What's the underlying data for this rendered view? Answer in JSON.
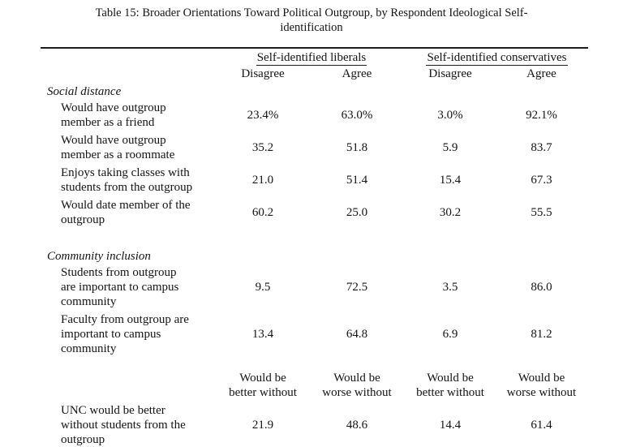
{
  "title": {
    "line1": "Table 15: Broader Orientations Toward Political Outgroup, by Respondent Ideological Self-",
    "line2": "identification"
  },
  "table": {
    "group_headers": [
      "Self-identified liberals",
      "Self-identified conservatives"
    ],
    "column_headers": [
      "Disagree",
      "Agree",
      "Disagree",
      "Agree"
    ],
    "rows": [
      {
        "type": "section",
        "label": "Social distance"
      },
      {
        "type": "data",
        "label": "Would have outgroup\nmember as a friend",
        "values": [
          "23.4%",
          "63.0%",
          "3.0%",
          "92.1%"
        ]
      },
      {
        "type": "data",
        "label": "Would have outgroup\nmember as a roommate",
        "values": [
          "35.2",
          "51.8",
          "5.9",
          "83.7"
        ]
      },
      {
        "type": "data",
        "label": "Enjoys taking classes with\nstudents from the outgroup",
        "values": [
          "21.0",
          "51.4",
          "15.4",
          "67.3"
        ]
      },
      {
        "type": "data",
        "label": "Would date member of the\noutgroup",
        "values": [
          "60.2",
          "25.0",
          "30.2",
          "55.5"
        ]
      },
      {
        "type": "section",
        "label": "Community inclusion"
      },
      {
        "type": "data",
        "label": "Students from outgroup\nare important to campus\ncommunity",
        "values": [
          "9.5",
          "72.5",
          "3.5",
          "86.0"
        ]
      },
      {
        "type": "data",
        "label": "Faculty from outgroup are\nimportant to campus\ncommunity",
        "values": [
          "13.4",
          "64.8",
          "6.9",
          "81.2"
        ]
      },
      {
        "type": "subheader",
        "values": [
          "Would be\nbetter without",
          "Would be\nworse without",
          "Would be\nbetter without",
          "Would be\nworse without"
        ]
      },
      {
        "type": "data",
        "label": "UNC would be better\nwithout students from the\noutgroup",
        "values": [
          "21.9",
          "48.6",
          "14.4",
          "61.4"
        ]
      }
    ]
  }
}
